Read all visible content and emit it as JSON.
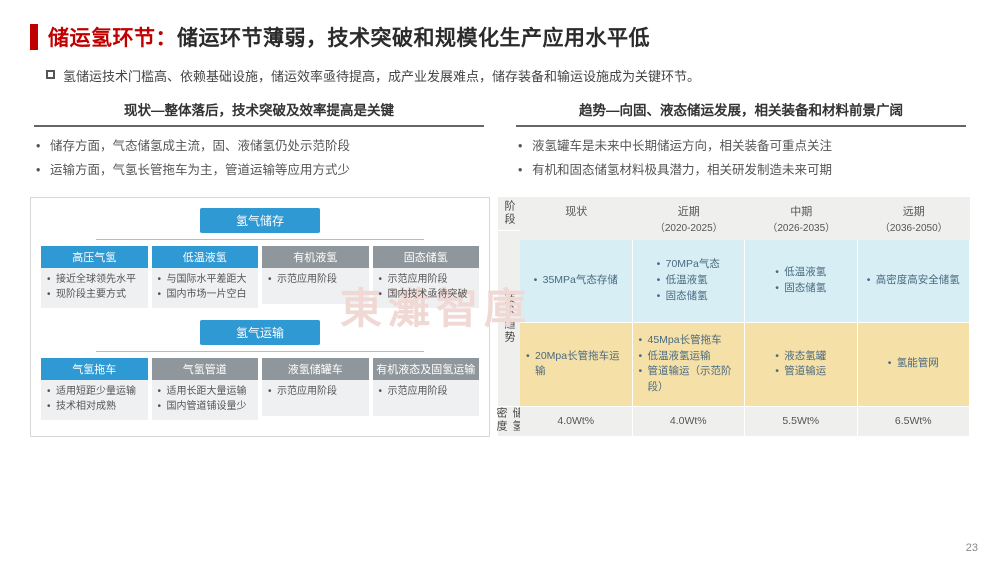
{
  "title": {
    "red": "储运氢环节：",
    "rest": "储运环节薄弱，技术突破和规模化生产应用水平低"
  },
  "subtitle": "氢储运技术门槛高、依赖基础设施，储运效率亟待提高，成产业发展难点，储存装备和输运设施成为关键环节。",
  "left_col": {
    "title": "现状—整体落后，技术突破及效率提高是关键",
    "bullets": [
      "储存方面，气态储氢成主流，固、液储氢仍处示范阶段",
      "运输方面，气氢长管拖车为主，管道运输等应用方式少"
    ]
  },
  "right_col": {
    "title": "趋势—向固、液态储运发展，相关装备和材料前景广阔",
    "bullets": [
      "液氢罐车是未来中长期储运方向，相关装备可重点关注",
      "有机和固态储氢材料极具潜力，相关研发制造未来可期"
    ]
  },
  "tree_storage": {
    "title": "氢气储存",
    "nodes": [
      {
        "head": "高压气氢",
        "blue": true,
        "items": [
          "接近全球领先水平",
          "现阶段主要方式"
        ]
      },
      {
        "head": "低温液氢",
        "blue": true,
        "items": [
          "与国际水平差距大",
          "国内市场一片空白"
        ]
      },
      {
        "head": "有机液氢",
        "blue": false,
        "items": [
          "示范应用阶段"
        ]
      },
      {
        "head": "固态储氢",
        "blue": false,
        "items": [
          "示范应用阶段",
          "国内技术亟待突破"
        ]
      }
    ]
  },
  "tree_transport": {
    "title": "氢气运输",
    "nodes": [
      {
        "head": "气氢拖车",
        "blue": true,
        "items": [
          "适用短距少量运输",
          "技术相对成熟"
        ]
      },
      {
        "head": "气氢管道",
        "blue": false,
        "items": [
          "适用长距大量运输",
          "国内管道铺设量少"
        ]
      },
      {
        "head": "液氢储罐车",
        "blue": false,
        "items": [
          "示范应用阶段"
        ]
      },
      {
        "head": "有机液态及固氢运输",
        "blue": false,
        "items": [
          "示范应用阶段"
        ]
      }
    ]
  },
  "roadmap": {
    "phase_label": "阶段",
    "row_labels": [
      "技术趋势",
      "储氢密度"
    ],
    "columns": [
      {
        "name": "现状",
        "sub": ""
      },
      {
        "name": "近期",
        "sub": "（2020-2025）"
      },
      {
        "name": "中期",
        "sub": "（2026-2035）"
      },
      {
        "name": "远期",
        "sub": "（2036-2050）"
      }
    ],
    "tech_top": [
      [
        "35MPa气态存储"
      ],
      [
        "70MPa气态",
        "低温液氢",
        "固态储氢"
      ],
      [
        "低温液氢",
        "固态储氢"
      ],
      [
        "高密度高安全储氢"
      ]
    ],
    "tech_bottom": [
      [
        "20Mpa长管拖车运输"
      ],
      [
        "45Mpa长管拖车",
        "低温液氢运输",
        "管道输运（示范阶段）"
      ],
      [
        "液态氢罐",
        "管道输运"
      ],
      [
        "氢能管网"
      ]
    ],
    "density": [
      "4.0Wt%",
      "4.0Wt%",
      "5.5Wt%",
      "6.5Wt%"
    ]
  },
  "page_number": "23",
  "watermark": "東灘智庫",
  "colors": {
    "blue": "#2f99d3",
    "gray": "#8f979c",
    "cyan": "#d6eef4",
    "yellow": "#f5e0a8",
    "lightgray": "#efefee",
    "red": "#c00000"
  }
}
